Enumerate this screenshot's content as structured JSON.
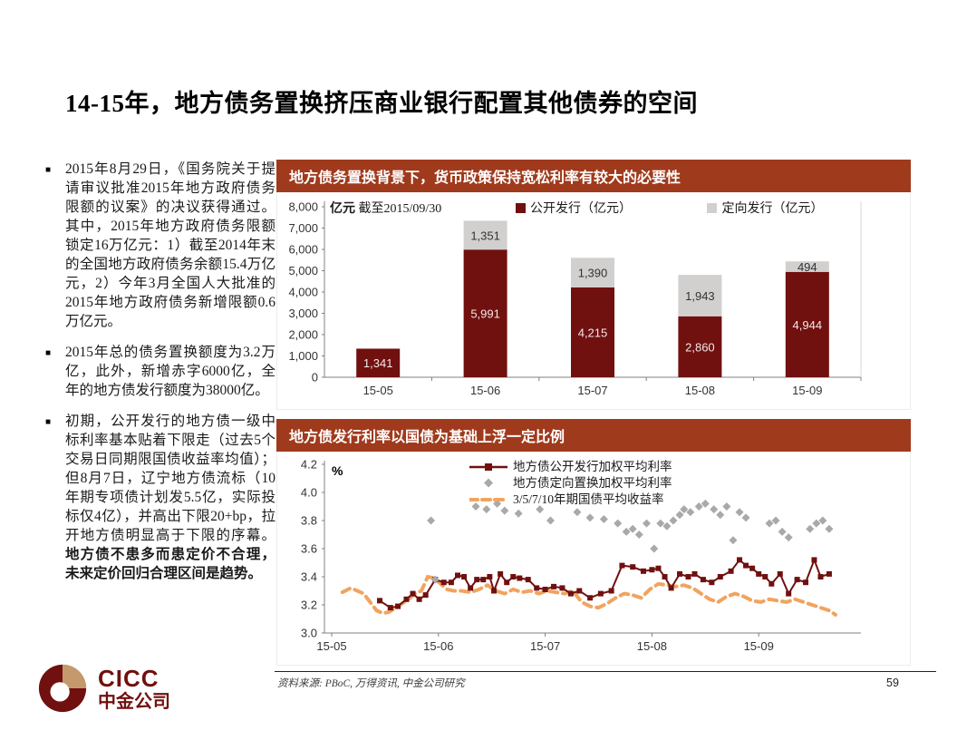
{
  "slide": {
    "title": "14-15年，地方债务置换挤压商业银行配置其他债券的空间",
    "page_number": "59",
    "source": "资料来源: PBoC, 万得资讯, 中金公司研究",
    "logo": {
      "en": "CICC",
      "cn": "中金公司"
    }
  },
  "bullets": [
    {
      "text": "2015年8月29日，《国务院关于提请审议批准2015年地方政府债务限额的议案》的决议获得通过。其中，2015年地方政府债务限额锁定16万亿元：1）截至2014年末的全国地方政府债务余额15.4万亿元，2）今年3月全国人大批准的2015年地方政府债务新增限额0.6万亿元。",
      "bold_text": ""
    },
    {
      "text": "2015年总的债务置换额度为3.2万亿，此外，新增赤字6000亿，全年的地方债发行额度为38000亿。",
      "bold_text": ""
    },
    {
      "text": "初期，公开发行的地方债一级中标利率基本贴着下限走（过去5个交易日同期限国债收益率均值）；但8月7日，辽宁地方债流标（10年期专项债计划发5.5亿，实际投标仅4亿），并高出下限20+bp，拉开地方债明显高于下限的序幕。",
      "bold_text": "地方债不患多而患定价不合理，未来定价回归合理区间是趋势。"
    }
  ],
  "colors": {
    "header_rust": "#A03A1C",
    "brand_maroon": "#70100F",
    "bar_public": "#70100F",
    "bar_private": "#D2CFCF",
    "line_public": "#70100F",
    "scatter_private": "#ABA8A8",
    "line_treasury": "#F0A45F"
  },
  "chart_data": [
    {
      "type": "bar",
      "stacked": true,
      "title": "地方债务置换背景下，货币政策保持宽松利率有较大的必要性",
      "unit": "亿元",
      "as_of": "截至2015/09/30",
      "categories": [
        "15-05",
        "15-06",
        "15-07",
        "15-08",
        "15-09"
      ],
      "series": [
        {
          "name": "公开发行（亿元）",
          "color": "#70100F",
          "values": [
            1341,
            5991,
            4215,
            2860,
            4944
          ]
        },
        {
          "name": "定向发行（亿元）",
          "color": "#D2CFCF",
          "values": [
            0,
            1351,
            1390,
            1943,
            494
          ]
        }
      ],
      "ylim": [
        0,
        8000
      ],
      "ytick_step": 1000,
      "legend_position": "top",
      "grid": false
    },
    {
      "type": "line",
      "title": "地方债发行利率以国债为基础上浮一定比例",
      "ylabel": "%",
      "ylim": [
        3.0,
        4.2
      ],
      "ytick_step": 0.2,
      "x_ticks": [
        "15-05",
        "15-06",
        "15-07",
        "15-08",
        "15-09"
      ],
      "x_unit": "month index, 0 = 15-05 tick",
      "legend_position": "top",
      "grid": false,
      "series": [
        {
          "name": "地方债公开发行加权平均利率",
          "style": "line-square",
          "color": "#70100F",
          "points": [
            [
              0.45,
              3.23
            ],
            [
              0.55,
              3.18
            ],
            [
              0.62,
              3.19
            ],
            [
              0.7,
              3.24
            ],
            [
              0.76,
              3.28
            ],
            [
              0.82,
              3.24
            ],
            [
              0.88,
              3.27
            ],
            [
              0.97,
              3.38
            ],
            [
              1.05,
              3.36
            ],
            [
              1.12,
              3.36
            ],
            [
              1.18,
              3.41
            ],
            [
              1.24,
              3.4
            ],
            [
              1.3,
              3.32
            ],
            [
              1.36,
              3.38
            ],
            [
              1.42,
              3.38
            ],
            [
              1.48,
              3.4
            ],
            [
              1.52,
              3.3
            ],
            [
              1.58,
              3.42
            ],
            [
              1.64,
              3.36
            ],
            [
              1.7,
              3.4
            ],
            [
              1.76,
              3.39
            ],
            [
              1.84,
              3.38
            ],
            [
              1.92,
              3.32
            ],
            [
              2.0,
              3.31
            ],
            [
              2.08,
              3.33
            ],
            [
              2.16,
              3.32
            ],
            [
              2.24,
              3.28
            ],
            [
              2.32,
              3.3
            ],
            [
              2.42,
              3.25
            ],
            [
              2.52,
              3.28
            ],
            [
              2.62,
              3.3
            ],
            [
              2.72,
              3.48
            ],
            [
              2.82,
              3.47
            ],
            [
              2.92,
              3.44
            ],
            [
              3.0,
              3.45
            ],
            [
              3.06,
              3.46
            ],
            [
              3.12,
              3.4
            ],
            [
              3.18,
              3.32
            ],
            [
              3.26,
              3.42
            ],
            [
              3.34,
              3.4
            ],
            [
              3.4,
              3.42
            ],
            [
              3.48,
              3.38
            ],
            [
              3.56,
              3.36
            ],
            [
              3.64,
              3.4
            ],
            [
              3.74,
              3.44
            ],
            [
              3.82,
              3.52
            ],
            [
              3.88,
              3.48
            ],
            [
              3.94,
              3.46
            ],
            [
              4.0,
              3.42
            ],
            [
              4.06,
              3.4
            ],
            [
              4.12,
              3.35
            ],
            [
              4.2,
              3.42
            ],
            [
              4.28,
              3.28
            ],
            [
              4.36,
              3.38
            ],
            [
              4.44,
              3.36
            ],
            [
              4.52,
              3.52
            ],
            [
              4.58,
              3.4
            ],
            [
              4.66,
              3.42
            ]
          ]
        },
        {
          "name": "地方债定向置换加权平均利率",
          "style": "scatter-diamond",
          "color": "#ABA8A8",
          "points": [
            [
              0.93,
              3.8
            ],
            [
              0.97,
              3.38
            ],
            [
              1.35,
              3.9
            ],
            [
              1.45,
              3.88
            ],
            [
              1.55,
              3.92
            ],
            [
              1.62,
              3.87
            ],
            [
              1.75,
              3.85
            ],
            [
              1.95,
              3.88
            ],
            [
              2.05,
              3.8
            ],
            [
              2.3,
              3.86
            ],
            [
              2.42,
              3.82
            ],
            [
              2.55,
              3.81
            ],
            [
              2.68,
              3.78
            ],
            [
              2.76,
              3.72
            ],
            [
              2.82,
              3.74
            ],
            [
              2.88,
              3.7
            ],
            [
              2.95,
              3.78
            ],
            [
              3.02,
              3.6
            ],
            [
              3.08,
              3.78
            ],
            [
              3.14,
              3.76
            ],
            [
              3.2,
              3.8
            ],
            [
              3.26,
              3.84
            ],
            [
              3.3,
              3.88
            ],
            [
              3.36,
              3.86
            ],
            [
              3.44,
              3.9
            ],
            [
              3.5,
              3.92
            ],
            [
              3.58,
              3.88
            ],
            [
              3.64,
              3.84
            ],
            [
              3.7,
              3.9
            ],
            [
              3.76,
              3.66
            ],
            [
              3.82,
              3.86
            ],
            [
              3.88,
              3.82
            ],
            [
              4.1,
              3.78
            ],
            [
              4.16,
              3.8
            ],
            [
              4.22,
              3.72
            ],
            [
              4.28,
              3.68
            ],
            [
              4.48,
              3.74
            ],
            [
              4.54,
              3.78
            ],
            [
              4.6,
              3.8
            ],
            [
              4.66,
              3.74
            ]
          ]
        },
        {
          "name": "3/5/7/10年期国债平均收益率",
          "style": "dashed-line",
          "color": "#F0A45F",
          "points": [
            [
              0.1,
              3.29
            ],
            [
              0.18,
              3.32
            ],
            [
              0.24,
              3.3
            ],
            [
              0.3,
              3.28
            ],
            [
              0.36,
              3.22
            ],
            [
              0.42,
              3.16
            ],
            [
              0.48,
              3.14
            ],
            [
              0.54,
              3.15
            ],
            [
              0.6,
              3.18
            ],
            [
              0.66,
              3.21
            ],
            [
              0.72,
              3.24
            ],
            [
              0.78,
              3.28
            ],
            [
              0.84,
              3.3
            ],
            [
              0.9,
              3.4
            ],
            [
              0.96,
              3.39
            ],
            [
              1.02,
              3.35
            ],
            [
              1.08,
              3.31
            ],
            [
              1.14,
              3.3
            ],
            [
              1.22,
              3.3
            ],
            [
              1.3,
              3.29
            ],
            [
              1.38,
              3.31
            ],
            [
              1.46,
              3.34
            ],
            [
              1.54,
              3.3
            ],
            [
              1.62,
              3.28
            ],
            [
              1.7,
              3.31
            ],
            [
              1.78,
              3.29
            ],
            [
              1.86,
              3.3
            ],
            [
              1.94,
              3.28
            ],
            [
              2.02,
              3.3
            ],
            [
              2.1,
              3.29
            ],
            [
              2.18,
              3.28
            ],
            [
              2.26,
              3.3
            ],
            [
              2.34,
              3.22
            ],
            [
              2.42,
              3.19
            ],
            [
              2.5,
              3.18
            ],
            [
              2.58,
              3.21
            ],
            [
              2.66,
              3.25
            ],
            [
              2.74,
              3.28
            ],
            [
              2.82,
              3.27
            ],
            [
              2.9,
              3.25
            ],
            [
              2.98,
              3.31
            ],
            [
              3.06,
              3.35
            ],
            [
              3.14,
              3.34
            ],
            [
              3.22,
              3.33
            ],
            [
              3.3,
              3.34
            ],
            [
              3.38,
              3.32
            ],
            [
              3.46,
              3.28
            ],
            [
              3.54,
              3.24
            ],
            [
              3.62,
              3.22
            ],
            [
              3.7,
              3.26
            ],
            [
              3.78,
              3.28
            ],
            [
              3.86,
              3.26
            ],
            [
              3.94,
              3.23
            ],
            [
              4.02,
              3.22
            ],
            [
              4.1,
              3.24
            ],
            [
              4.18,
              3.23
            ],
            [
              4.26,
              3.22
            ],
            [
              4.34,
              3.24
            ],
            [
              4.42,
              3.22
            ],
            [
              4.5,
              3.2
            ],
            [
              4.58,
              3.18
            ],
            [
              4.66,
              3.16
            ],
            [
              4.72,
              3.13
            ]
          ]
        }
      ]
    }
  ]
}
